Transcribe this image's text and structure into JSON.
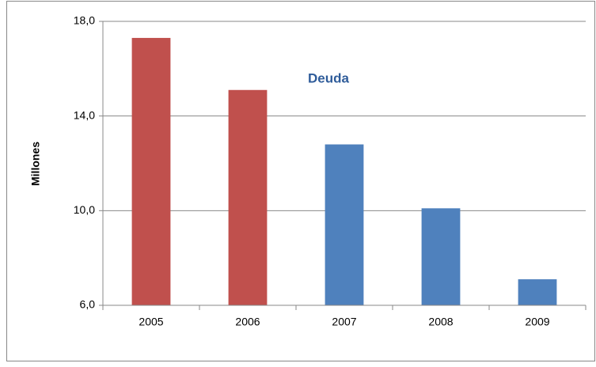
{
  "chart_data": {
    "type": "bar",
    "title": "Deuda",
    "y_label": "Millones",
    "categories": [
      "2005",
      "2006",
      "2007",
      "2008",
      "2009"
    ],
    "values": [
      17.3,
      15.1,
      12.8,
      10.1,
      7.1
    ],
    "colors": [
      "#c0504d",
      "#c0504d",
      "#4f81bd",
      "#4f81bd",
      "#4f81bd"
    ],
    "ylim": [
      6,
      18
    ],
    "yticks": [
      {
        "value": 6,
        "label": "6,0"
      },
      {
        "value": 10,
        "label": "10,0"
      },
      {
        "value": 14,
        "label": "14,0"
      },
      {
        "value": 18,
        "label": "18,0"
      }
    ],
    "grid": true
  }
}
